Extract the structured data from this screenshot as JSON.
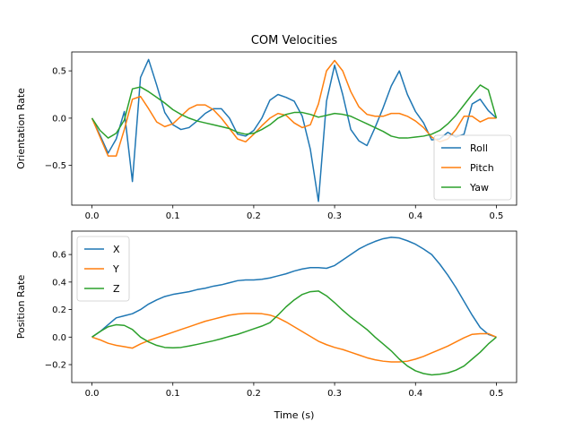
{
  "figure_title": "COM Velocities",
  "chart_data": [
    {
      "type": "line",
      "title": "COM Velocities",
      "xlabel": "",
      "ylabel": "Orientation Rate",
      "xlim": [
        -0.025,
        0.525
      ],
      "ylim": [
        -0.92,
        0.7
      ],
      "xticks": [
        0.0,
        0.1,
        0.2,
        0.3,
        0.4,
        0.5
      ],
      "xtick_labels": [
        "0.0",
        "0.1",
        "0.2",
        "0.3",
        "0.4",
        "0.5"
      ],
      "yticks": [
        -0.5,
        0.0,
        0.5
      ],
      "ytick_labels": [
        "−0.5",
        "0.0",
        "0.5"
      ],
      "legend_position": "lower-right",
      "grid": false,
      "x": [
        0.0,
        0.01,
        0.02,
        0.03,
        0.04,
        0.05,
        0.06,
        0.07,
        0.08,
        0.09,
        0.1,
        0.11,
        0.12,
        0.13,
        0.14,
        0.15,
        0.16,
        0.17,
        0.18,
        0.19,
        0.2,
        0.21,
        0.22,
        0.23,
        0.24,
        0.25,
        0.26,
        0.27,
        0.28,
        0.29,
        0.3,
        0.31,
        0.32,
        0.33,
        0.34,
        0.35,
        0.36,
        0.37,
        0.38,
        0.39,
        0.4,
        0.41,
        0.42,
        0.43,
        0.44,
        0.45,
        0.46,
        0.47,
        0.48,
        0.49,
        0.5
      ],
      "series": [
        {
          "name": "Roll",
          "color": "#1f77b4",
          "values": [
            0.0,
            -0.18,
            -0.37,
            -0.22,
            0.07,
            -0.67,
            0.43,
            0.62,
            0.35,
            0.06,
            -0.07,
            -0.12,
            -0.1,
            -0.03,
            0.05,
            0.1,
            0.1,
            0.0,
            -0.17,
            -0.19,
            -0.13,
            0.0,
            0.19,
            0.25,
            0.22,
            0.18,
            0.02,
            -0.33,
            -0.88,
            0.18,
            0.56,
            0.25,
            -0.12,
            -0.24,
            -0.29,
            -0.1,
            0.11,
            0.34,
            0.5,
            0.25,
            0.07,
            -0.05,
            -0.23,
            -0.22,
            -0.15,
            -0.2,
            -0.17,
            0.15,
            0.2,
            0.08,
            0.0
          ]
        },
        {
          "name": "Pitch",
          "color": "#ff7f0e",
          "values": [
            0.0,
            -0.2,
            -0.4,
            -0.4,
            -0.12,
            0.2,
            0.23,
            0.1,
            -0.04,
            -0.09,
            -0.06,
            0.02,
            0.1,
            0.14,
            0.14,
            0.09,
            0.0,
            -0.11,
            -0.22,
            -0.25,
            -0.17,
            -0.08,
            0.0,
            0.05,
            0.03,
            -0.05,
            -0.1,
            -0.07,
            0.15,
            0.5,
            0.61,
            0.5,
            0.28,
            0.12,
            0.04,
            0.02,
            0.02,
            0.05,
            0.05,
            0.02,
            -0.03,
            -0.1,
            -0.2,
            -0.25,
            -0.22,
            -0.12,
            0.02,
            0.02,
            -0.04,
            0.0,
            0.0
          ]
        },
        {
          "name": "Yaw",
          "color": "#2ca02c",
          "values": [
            0.0,
            -0.13,
            -0.21,
            -0.16,
            -0.02,
            0.31,
            0.33,
            0.28,
            0.22,
            0.16,
            0.09,
            0.04,
            0.0,
            -0.03,
            -0.05,
            -0.07,
            -0.09,
            -0.11,
            -0.15,
            -0.17,
            -0.16,
            -0.12,
            -0.07,
            0.0,
            0.04,
            0.06,
            0.06,
            0.04,
            0.01,
            0.03,
            0.05,
            0.04,
            0.02,
            -0.02,
            -0.06,
            -0.1,
            -0.14,
            -0.19,
            -0.21,
            -0.21,
            -0.2,
            -0.19,
            -0.17,
            -0.13,
            -0.06,
            0.03,
            0.14,
            0.25,
            0.35,
            0.3,
            0.0
          ]
        }
      ]
    },
    {
      "type": "line",
      "title": "",
      "xlabel": "Time (s)",
      "ylabel": "Position Rate",
      "xlim": [
        -0.025,
        0.525
      ],
      "ylim": [
        -0.33,
        0.77
      ],
      "xticks": [
        0.0,
        0.1,
        0.2,
        0.3,
        0.4,
        0.5
      ],
      "xtick_labels": [
        "0.0",
        "0.1",
        "0.2",
        "0.3",
        "0.4",
        "0.5"
      ],
      "yticks": [
        -0.2,
        0.0,
        0.2,
        0.4,
        0.6
      ],
      "ytick_labels": [
        "−0.2",
        "0.0",
        "0.2",
        "0.4",
        "0.6"
      ],
      "legend_position": "upper-left",
      "grid": false,
      "x": [
        0.0,
        0.01,
        0.02,
        0.03,
        0.04,
        0.05,
        0.06,
        0.07,
        0.08,
        0.09,
        0.1,
        0.11,
        0.12,
        0.13,
        0.14,
        0.15,
        0.16,
        0.17,
        0.18,
        0.19,
        0.2,
        0.21,
        0.22,
        0.23,
        0.24,
        0.25,
        0.26,
        0.27,
        0.28,
        0.29,
        0.3,
        0.31,
        0.32,
        0.33,
        0.34,
        0.35,
        0.36,
        0.37,
        0.38,
        0.39,
        0.4,
        0.41,
        0.42,
        0.43,
        0.44,
        0.45,
        0.46,
        0.47,
        0.48,
        0.49,
        0.5
      ],
      "series": [
        {
          "name": "X",
          "color": "#1f77b4",
          "values": [
            0.0,
            0.04,
            0.09,
            0.14,
            0.155,
            0.17,
            0.2,
            0.24,
            0.27,
            0.295,
            0.31,
            0.32,
            0.33,
            0.345,
            0.355,
            0.37,
            0.38,
            0.395,
            0.41,
            0.415,
            0.415,
            0.42,
            0.43,
            0.445,
            0.46,
            0.48,
            0.495,
            0.505,
            0.505,
            0.5,
            0.52,
            0.56,
            0.6,
            0.64,
            0.67,
            0.695,
            0.715,
            0.725,
            0.72,
            0.7,
            0.675,
            0.64,
            0.6,
            0.53,
            0.45,
            0.36,
            0.26,
            0.16,
            0.07,
            0.02,
            0.0
          ]
        },
        {
          "name": "Y",
          "color": "#ff7f0e",
          "values": [
            0.0,
            -0.02,
            -0.045,
            -0.06,
            -0.07,
            -0.08,
            -0.05,
            -0.025,
            -0.005,
            0.015,
            0.035,
            0.055,
            0.075,
            0.095,
            0.115,
            0.13,
            0.145,
            0.16,
            0.168,
            0.172,
            0.172,
            0.17,
            0.16,
            0.14,
            0.11,
            0.075,
            0.04,
            0.005,
            -0.03,
            -0.055,
            -0.075,
            -0.09,
            -0.11,
            -0.13,
            -0.15,
            -0.165,
            -0.175,
            -0.18,
            -0.18,
            -0.175,
            -0.16,
            -0.14,
            -0.115,
            -0.09,
            -0.065,
            -0.035,
            -0.005,
            0.02,
            0.025,
            0.025,
            0.0
          ]
        },
        {
          "name": "Z",
          "color": "#2ca02c",
          "values": [
            0.0,
            0.04,
            0.075,
            0.09,
            0.085,
            0.055,
            0.0,
            -0.035,
            -0.06,
            -0.075,
            -0.078,
            -0.075,
            -0.065,
            -0.053,
            -0.04,
            -0.027,
            -0.012,
            0.005,
            0.02,
            0.04,
            0.06,
            0.08,
            0.105,
            0.16,
            0.22,
            0.27,
            0.31,
            0.33,
            0.335,
            0.3,
            0.25,
            0.195,
            0.145,
            0.1,
            0.055,
            0.0,
            -0.05,
            -0.1,
            -0.16,
            -0.21,
            -0.245,
            -0.265,
            -0.275,
            -0.27,
            -0.26,
            -0.24,
            -0.21,
            -0.16,
            -0.11,
            -0.05,
            0.0
          ]
        }
      ]
    }
  ]
}
